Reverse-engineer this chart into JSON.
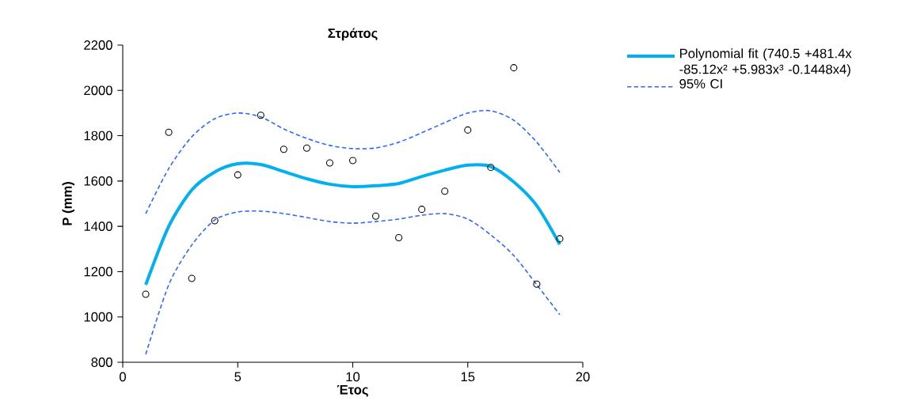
{
  "chart_data": {
    "type": "scatter",
    "title": "Στράτος",
    "xlabel": "Έτος",
    "ylabel": "P (mm)",
    "xlim": [
      0,
      20
    ],
    "xticks": [
      0,
      5,
      10,
      15,
      20
    ],
    "ylim": [
      800,
      2200
    ],
    "yticks": [
      800,
      1000,
      1200,
      1400,
      1600,
      1800,
      2000,
      2200
    ],
    "grid": false,
    "legend": "right",
    "series": [
      {
        "type": "scatter",
        "color": "#000000",
        "marker": "circle",
        "x": [
          1,
          2,
          3,
          4,
          5,
          6,
          7,
          8,
          9,
          10,
          11,
          12,
          13,
          14,
          15,
          16,
          17,
          18,
          19
        ],
        "values": [
          1100,
          1815,
          1170,
          1425,
          1627,
          1890,
          1740,
          1745,
          1680,
          1690,
          1445,
          1350,
          1475,
          1555,
          1825,
          1660,
          2100,
          1145,
          1345
        ]
      },
      {
        "type": "line",
        "name": "Polynomial fit (740.5  +481.4x -85.12x²  +5.983x³  -0.1448x4)",
        "color": "#00b0f0",
        "line_style": "solid",
        "x": [
          1,
          2,
          3,
          4,
          5,
          6,
          7,
          8,
          9,
          10,
          11,
          12,
          13,
          14,
          15,
          16,
          17,
          18,
          19
        ],
        "values": [
          1142,
          1400,
          1560,
          1640,
          1676,
          1673,
          1642,
          1610,
          1586,
          1575,
          1579,
          1589,
          1620,
          1648,
          1670,
          1664,
          1596,
          1491,
          1320
        ]
      },
      {
        "type": "line",
        "name": "95% CI",
        "color": "#3366ff",
        "line_style": "dashed",
        "x": [
          1,
          2,
          3,
          4,
          5,
          6,
          7,
          8,
          9,
          10,
          11,
          12,
          13,
          14,
          15,
          16,
          17,
          18,
          19
        ],
        "values": [
          1456,
          1655,
          1795,
          1875,
          1900,
          1883,
          1830,
          1788,
          1757,
          1743,
          1746,
          1771,
          1813,
          1858,
          1900,
          1910,
          1868,
          1771,
          1638
        ]
      },
      {
        "type": "line",
        "color": "#3366ff",
        "line_style": "dashed",
        "x": [
          1,
          2,
          3,
          4,
          5,
          6,
          7,
          8,
          9,
          10,
          11,
          12,
          13,
          14,
          15,
          16,
          17,
          18,
          19
        ],
        "values": [
          835,
          1142,
          1317,
          1428,
          1463,
          1467,
          1456,
          1439,
          1421,
          1414,
          1421,
          1432,
          1449,
          1456,
          1432,
          1362,
          1271,
          1142,
          1010
        ]
      }
    ]
  }
}
